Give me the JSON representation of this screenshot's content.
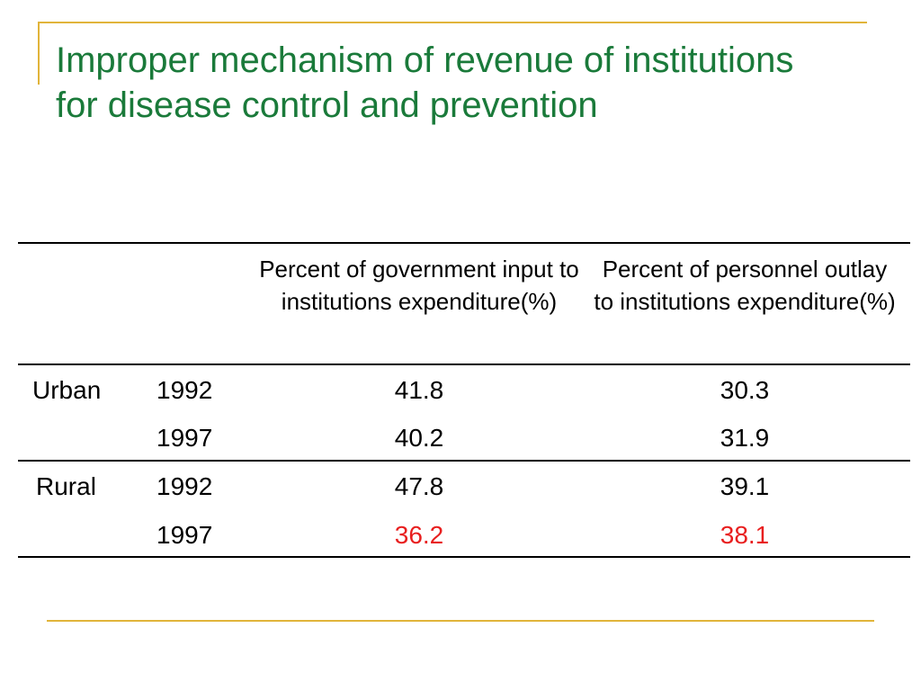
{
  "title": {
    "line1": "Improper mechanism of revenue of institutions",
    "line2": "for disease control and prevention"
  },
  "table": {
    "headers": {
      "col1": "Percent of government input to institutions expenditure(%)",
      "col2": "Percent of personnel outlay to institutions expenditure(%)"
    },
    "rows": [
      {
        "region": "Urban",
        "year": "1992",
        "gov": "41.8",
        "personnel": "30.3"
      },
      {
        "region": "",
        "year": "1997",
        "gov": "40.2",
        "personnel": "31.9"
      },
      {
        "region": "Rural",
        "year": "1992",
        "gov": "47.8",
        "personnel": "39.1"
      },
      {
        "region": "",
        "year": "1997",
        "gov": "36.2",
        "personnel": "38.1"
      }
    ],
    "highlight_color": "#e81f1f"
  },
  "colors": {
    "title": "#1a7a3a",
    "accent_rule": "#e1b43a"
  }
}
